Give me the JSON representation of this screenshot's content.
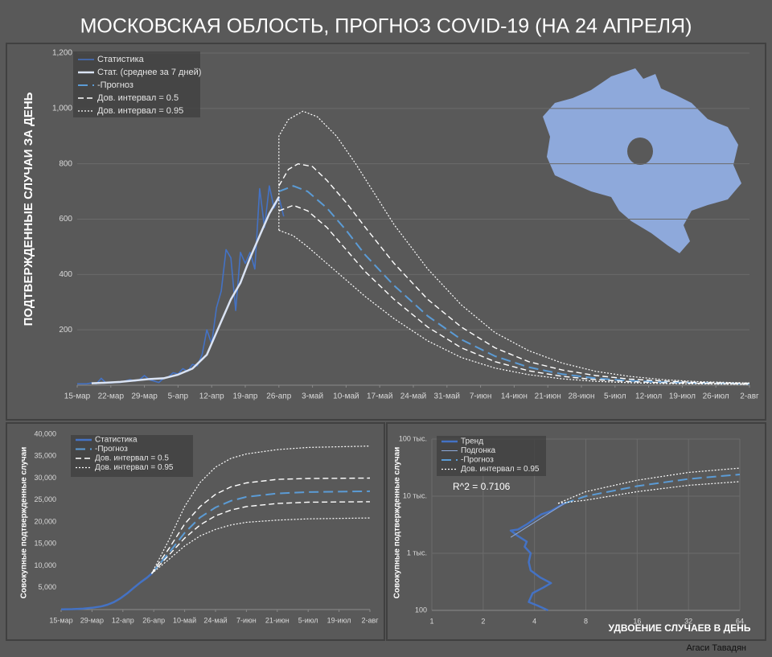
{
  "title": "МОСКОВСКАЯ ОБЛОСТЬ, ПРОГНОЗ COVID-19 (НА 24 АПРЕЛЯ)",
  "author": "Агаси Тавадян",
  "chart_data": [
    {
      "type": "line",
      "ylabel": "ПОДТВЕРЖДЕННЫЕ СЛУЧАИ ЗА ДЕНЬ",
      "legend": "upper left",
      "grid": true,
      "xlim": [
        0,
        140
      ],
      "ylim": [
        0,
        1200
      ],
      "xticks": [
        {
          "value": 0,
          "label": "15-мар"
        },
        {
          "value": 7,
          "label": "22-мар"
        },
        {
          "value": 14,
          "label": "29-мар"
        },
        {
          "value": 21,
          "label": "5-апр"
        },
        {
          "value": 28,
          "label": "12-апр"
        },
        {
          "value": 35,
          "label": "19-апр"
        },
        {
          "value": 42,
          "label": "26-апр"
        },
        {
          "value": 49,
          "label": "3-май"
        },
        {
          "value": 56,
          "label": "10-май"
        },
        {
          "value": 63,
          "label": "17-май"
        },
        {
          "value": 70,
          "label": "24-май"
        },
        {
          "value": 77,
          "label": "31-май"
        },
        {
          "value": 84,
          "label": "7-июн"
        },
        {
          "value": 91,
          "label": "14-июн"
        },
        {
          "value": 98,
          "label": "21-июн"
        },
        {
          "value": 105,
          "label": "28-июн"
        },
        {
          "value": 112,
          "label": "5-июл"
        },
        {
          "value": 119,
          "label": "12-июл"
        },
        {
          "value": 126,
          "label": "19-июл"
        },
        {
          "value": 133,
          "label": "26-июл"
        },
        {
          "value": 140,
          "label": "2-авг"
        }
      ],
      "yticks": [
        200,
        400,
        600,
        800,
        {
          "value": 1000,
          "label": "1,000"
        },
        {
          "value": 1200,
          "label": "1,200"
        }
      ],
      "series": [
        {
          "name": "Статистика",
          "color": "#4472c4",
          "style": "solid",
          "x": [
            0,
            1,
            2,
            3,
            4,
            5,
            6,
            7,
            8,
            9,
            10,
            11,
            12,
            13,
            14,
            15,
            16,
            17,
            18,
            19,
            20,
            21,
            22,
            23,
            24,
            25,
            26,
            27,
            28,
            29,
            30,
            31,
            32,
            33,
            34,
            35,
            36,
            37,
            38,
            39,
            40,
            41,
            42,
            43
          ],
          "values": [
            5,
            5,
            5,
            8,
            5,
            25,
            8,
            8,
            10,
            10,
            15,
            20,
            15,
            20,
            35,
            20,
            15,
            10,
            25,
            30,
            45,
            40,
            60,
            50,
            75,
            70,
            110,
            200,
            150,
            280,
            340,
            490,
            460,
            270,
            480,
            440,
            480,
            420,
            710,
            570,
            720,
            640,
            680,
            610
          ]
        },
        {
          "name": "Стат. (среднее за 7 дней)",
          "color": "#dae3f3",
          "style": "bold",
          "x": [
            3,
            6,
            9,
            12,
            15,
            18,
            21,
            24,
            27,
            30,
            32,
            34,
            36,
            38,
            40,
            42
          ],
          "values": [
            7,
            9,
            12,
            17,
            22,
            25,
            38,
            60,
            110,
            230,
            310,
            370,
            460,
            540,
            620,
            680
          ]
        },
        {
          "name": "-Прогноз",
          "color": "#5b9bd5",
          "style": "long-dashed",
          "x": [
            42,
            45,
            48,
            52,
            56,
            60,
            66,
            73,
            80,
            87,
            94,
            101,
            108,
            115,
            122,
            129,
            136,
            140
          ],
          "values": [
            700,
            720,
            700,
            640,
            560,
            470,
            360,
            250,
            165,
            105,
            65,
            40,
            25,
            16,
            11,
            8,
            6,
            5
          ]
        },
        {
          "name": "Дов. интервал = 0.5",
          "color": "#ffffff",
          "style": "dashed",
          "x": [
            42,
            44,
            46,
            49,
            52,
            56,
            60,
            66,
            73,
            80,
            87,
            94,
            101,
            108,
            115,
            122,
            129,
            140,
            null,
            42,
            45,
            48,
            52,
            56,
            60,
            66,
            73,
            80,
            87,
            94,
            101,
            108,
            115,
            122,
            140
          ],
          "values": [
            720,
            780,
            800,
            790,
            740,
            660,
            570,
            440,
            310,
            210,
            135,
            85,
            55,
            35,
            22,
            15,
            10,
            7,
            null,
            630,
            650,
            630,
            570,
            490,
            410,
            310,
            210,
            135,
            85,
            52,
            32,
            20,
            13,
            9,
            4
          ]
        },
        {
          "name": "Дов. интервал = 0.95",
          "color": "#ffffff",
          "style": "dotted",
          "x": [
            42,
            42,
            44,
            47,
            50,
            54,
            58,
            62,
            66,
            73,
            80,
            87,
            94,
            101,
            108,
            115,
            122,
            129,
            140,
            null,
            42,
            45,
            48,
            52,
            56,
            60,
            66,
            73,
            80,
            87,
            94,
            101,
            108,
            115,
            122,
            140
          ],
          "values": [
            560,
            900,
            960,
            990,
            970,
            900,
            800,
            690,
            580,
            420,
            290,
            190,
            125,
            80,
            50,
            32,
            20,
            13,
            8,
            null,
            560,
            540,
            500,
            440,
            380,
            320,
            240,
            160,
            100,
            62,
            38,
            23,
            14,
            9,
            6,
            3
          ]
        }
      ]
    },
    {
      "type": "line",
      "ylabel": "Совокупные подтвержденные случаи",
      "legend": "upper left",
      "grid": false,
      "xlim": [
        0,
        140
      ],
      "ylim": [
        0,
        40000
      ],
      "xticks": [
        {
          "value": 0,
          "label": "15-мар"
        },
        {
          "value": 14,
          "label": "29-мар"
        },
        {
          "value": 28,
          "label": "12-апр"
        },
        {
          "value": 42,
          "label": "26-апр"
        },
        {
          "value": 56,
          "label": "10-май"
        },
        {
          "value": 70,
          "label": "24-май"
        },
        {
          "value": 84,
          "label": "7-июн"
        },
        {
          "value": 98,
          "label": "21-июн"
        },
        {
          "value": 112,
          "label": "5-июл"
        },
        {
          "value": 126,
          "label": "19-июл"
        },
        {
          "value": 140,
          "label": "2-авг"
        }
      ],
      "yticks": [
        {
          "value": 5000,
          "label": "5,000"
        },
        {
          "value": 10000,
          "label": "10,000"
        },
        {
          "value": 15000,
          "label": "15,000"
        },
        {
          "value": 20000,
          "label": "20,000"
        },
        {
          "value": 25000,
          "label": "25,000"
        },
        {
          "value": 30000,
          "label": "30,000"
        },
        {
          "value": 35000,
          "label": "35,000"
        },
        {
          "value": 40000,
          "label": "40,000"
        }
      ],
      "series": [
        {
          "name": "Статистика",
          "color": "#4472c4",
          "style": "bold",
          "x": [
            0,
            5,
            10,
            14,
            18,
            21,
            24,
            27,
            30,
            33,
            36,
            39,
            41
          ],
          "values": [
            60,
            100,
            200,
            400,
            700,
            1100,
            1700,
            2600,
            3700,
            5000,
            6200,
            7300,
            8200
          ]
        },
        {
          "name": "-Прогноз",
          "color": "#5b9bd5",
          "style": "long-dashed",
          "x": [
            41,
            49,
            56,
            63,
            70,
            77,
            84,
            98,
            112,
            140
          ],
          "values": [
            8200,
            13000,
            17500,
            21000,
            23300,
            24800,
            25700,
            26500,
            26800,
            27000
          ]
        },
        {
          "name": "Дов. интервал = 0.5",
          "color": "#ffffff",
          "style": "dashed",
          "x": [
            41,
            49,
            56,
            63,
            70,
            77,
            84,
            98,
            112,
            140,
            null,
            41,
            49,
            56,
            63,
            70,
            77,
            84,
            98,
            112,
            140
          ],
          "values": [
            8200,
            14000,
            19500,
            23500,
            26300,
            28000,
            28900,
            29700,
            29900,
            30000,
            null,
            8200,
            12500,
            16300,
            19300,
            21400,
            22700,
            23500,
            24200,
            24500,
            24600
          ]
        },
        {
          "name": "Дов. интервал = 0.95",
          "color": "#ffffff",
          "style": "dotted",
          "x": [
            41,
            49,
            56,
            63,
            70,
            77,
            84,
            98,
            112,
            140,
            null,
            41,
            49,
            56,
            63,
            70,
            77,
            84,
            98,
            112,
            140
          ],
          "values": [
            8200,
            16000,
            23500,
            29000,
            32500,
            34500,
            35500,
            36500,
            37000,
            37300,
            null,
            8200,
            11500,
            14500,
            16800,
            18300,
            19300,
            19900,
            20400,
            20700,
            20900
          ]
        }
      ]
    },
    {
      "type": "line",
      "ylabel": "Совокупные подтвержденные случаи",
      "xlabel": "УДВОЕНИЕ СЛУЧАЕВ В ДЕНЬ",
      "annotation": "R^2 = 0.7106",
      "legend": "upper left",
      "grid": true,
      "xgrid": true,
      "xlog": true,
      "ylog": true,
      "xlim": [
        1,
        64
      ],
      "ylim": [
        100,
        100000
      ],
      "xticks": [
        1,
        2,
        4,
        8,
        16,
        32,
        64
      ],
      "yticks": [
        100,
        {
          "value": 1000,
          "label": "1 тыс."
        },
        {
          "value": 10000,
          "label": "10 тыс."
        },
        {
          "value": 100000,
          "label": "100 тыс."
        }
      ],
      "series": [
        {
          "name": "Тренд",
          "color": "#4472c4",
          "style": "bold",
          "x": [
            4.8,
            4.2,
            3.7,
            3.9,
            4.5,
            5.0,
            4.3,
            3.8,
            3.7,
            3.8,
            3.5,
            3.6,
            3.2,
            2.9,
            3.2,
            3.6,
            4.0,
            4.4,
            5.0,
            5.5,
            6.0
          ],
          "values": [
            100,
            120,
            140,
            200,
            250,
            300,
            380,
            500,
            700,
            1000,
            1300,
            1600,
            2000,
            2500,
            2600,
            3200,
            4000,
            4800,
            5500,
            6500,
            7500
          ]
        },
        {
          "name": "Подгонка",
          "color": "#8eaadb",
          "style": "thin",
          "x": [
            2.9,
            6
          ],
          "values": [
            1900,
            7500
          ]
        },
        {
          "name": "-Прогноз",
          "color": "#5b9bd5",
          "style": "long-dashed",
          "x": [
            6,
            8,
            16,
            32,
            64
          ],
          "values": [
            7500,
            10000,
            15000,
            20000,
            24000
          ]
        },
        {
          "name": "Дов. интервал = 0.95",
          "color": "#ffffff",
          "style": "dotted",
          "x": [
            5.5,
            8,
            16,
            32,
            64,
            null,
            5.5,
            8,
            16,
            32,
            64
          ],
          "values": [
            7500,
            12000,
            19000,
            26000,
            31000,
            null,
            7500,
            8500,
            12000,
            15500,
            18000
          ]
        }
      ]
    }
  ]
}
